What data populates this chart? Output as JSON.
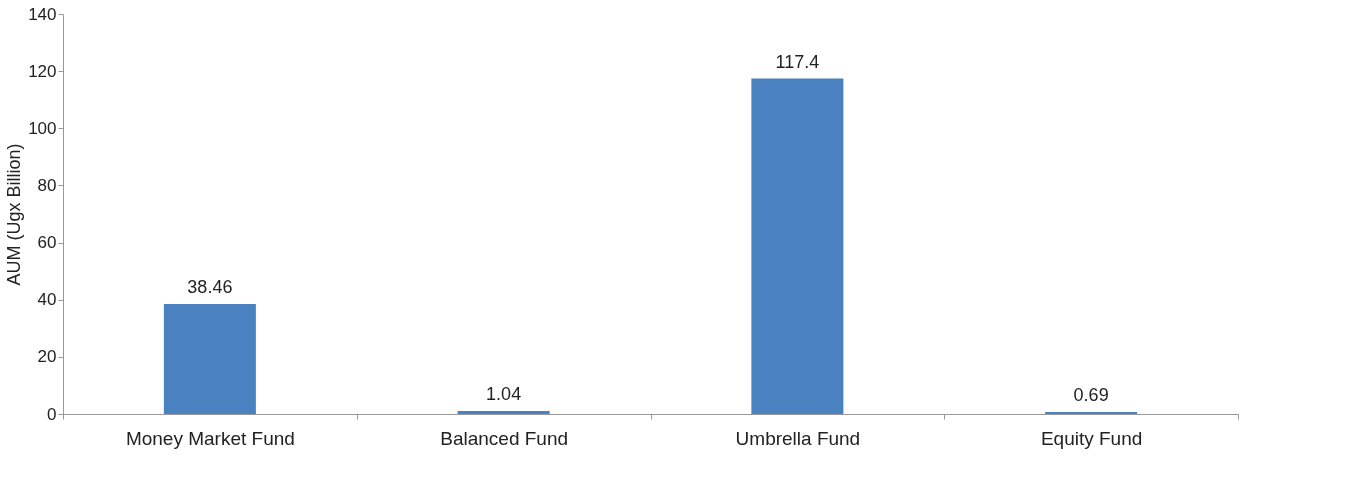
{
  "chart_data": {
    "type": "bar",
    "ylabel": "AUM (Ugx Billion)",
    "categories": [
      "Money Market Fund",
      "Balanced Fund",
      "Umbrella Fund",
      "Equity Fund"
    ],
    "values": [
      38.46,
      1.04,
      117.4,
      0.69
    ],
    "color": "#4a81c0",
    "ylim": [
      0,
      140
    ],
    "yticks": [
      0,
      20,
      40,
      60,
      80,
      100,
      120,
      140
    ],
    "data_labels": true
  }
}
